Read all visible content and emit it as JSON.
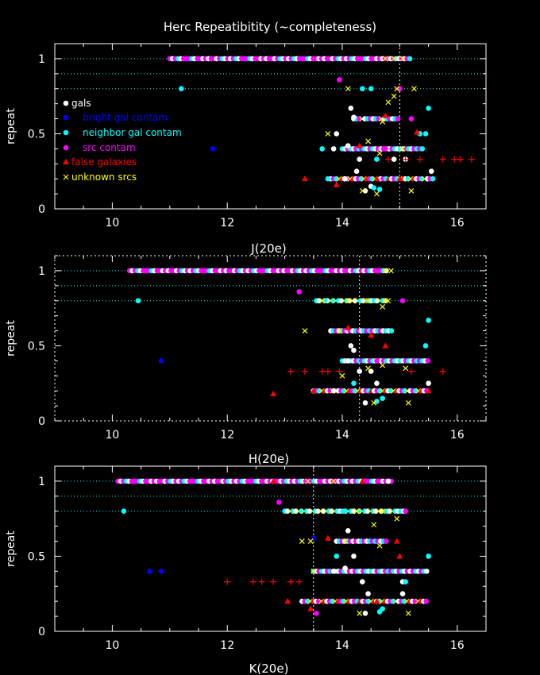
{
  "title": "Herc Repeatibitity (~completeness)",
  "ylabel": "repeat",
  "colors": {
    "background": "#000000",
    "axes": "#ffffff",
    "refline": "#00ffff",
    "gals": "#ffffff",
    "bright": "#0000ff",
    "neighbor": "#00ffff",
    "src": "#ff00ff",
    "false": "#ff0000",
    "unknown": "#ffff00"
  },
  "legend": [
    {
      "key": "gals",
      "label": "gals",
      "marker": "circle",
      "color": "#ffffff"
    },
    {
      "key": "bright",
      "label": "bright gal contam",
      "marker": "circle",
      "color": "#0000ff"
    },
    {
      "key": "neighbor",
      "label": "neighbor gal contam",
      "marker": "circle",
      "color": "#00ffff"
    },
    {
      "key": "src",
      "label": "src contam",
      "marker": "circle",
      "color": "#ff00ff"
    },
    {
      "key": "false",
      "label": "false galaxies",
      "marker": "triangle",
      "color": "#ff0000"
    },
    {
      "key": "unknown",
      "label": "unknown srcs",
      "marker": "x",
      "color": "#ffff00"
    }
  ],
  "chart_data": [
    {
      "type": "scatter",
      "xlabel": "J(20e)",
      "ylabel": "repeat",
      "xlim": [
        9,
        16.5
      ],
      "ylim": [
        0,
        1.1
      ],
      "xticks": [
        10,
        12,
        14,
        16
      ],
      "yticks": [
        0,
        0.5,
        1
      ],
      "ref_lines": [
        1.0,
        0.9,
        0.8
      ],
      "vline": 15.0,
      "dense_bands": [
        {
          "y": 1.0,
          "x_range": [
            11.0,
            15.2
          ],
          "colors": [
            "#ff00ff",
            "#ffffff",
            "#ff00ff",
            "#00ffff",
            "#ffffff",
            "#ff00ff"
          ]
        },
        {
          "y": 0.6,
          "x_range": [
            14.2,
            15.0
          ],
          "colors": [
            "#ffffff",
            "#00ffff",
            "#ff00ff",
            "#ffff00"
          ]
        },
        {
          "y": 0.4,
          "x_range": [
            14.0,
            15.4
          ],
          "colors": [
            "#00ffff",
            "#ffffff",
            "#ff00ff"
          ]
        },
        {
          "y": 0.2,
          "x_range": [
            13.8,
            15.6
          ],
          "colors": [
            "#ffffff",
            "#ff00ff",
            "#00ffff",
            "#ffff00",
            "#ff0000"
          ]
        }
      ],
      "series": [
        {
          "key": "gals",
          "points": [
            [
              14.15,
              0.67
            ],
            [
              14.2,
              0.61
            ],
            [
              13.9,
              0.5
            ],
            [
              14.1,
              0.42
            ],
            [
              14.3,
              0.33
            ],
            [
              14.25,
              0.25
            ],
            [
              14.4,
              0.12
            ],
            [
              14.5,
              0.15
            ],
            [
              15.55,
              0.25
            ],
            [
              14.9,
              0.33
            ],
            [
              15.1,
              0.33
            ],
            [
              13.85,
              0.4
            ],
            [
              14.05,
              0.2
            ]
          ]
        },
        {
          "key": "bright",
          "points": [
            [
              11.75,
              0.4
            ]
          ]
        },
        {
          "key": "neighbor",
          "points": [
            [
              11.2,
              0.8
            ],
            [
              13.65,
              0.4
            ],
            [
              13.75,
              0.2
            ],
            [
              14.35,
              0.8
            ],
            [
              14.5,
              0.8
            ],
            [
              15.5,
              0.67
            ],
            [
              15.35,
              0.5
            ],
            [
              15.45,
              0.5
            ],
            [
              14.6,
              0.33
            ],
            [
              14.65,
              0.13
            ],
            [
              14.55,
              0.14
            ]
          ]
        },
        {
          "key": "src",
          "points": [
            [
              13.95,
              0.86
            ],
            [
              14.75,
              0.4
            ],
            [
              15.0,
              0.8
            ],
            [
              15.2,
              0.6
            ]
          ]
        },
        {
          "key": "false",
          "points": [
            [
              13.35,
              0.2
            ],
            [
              13.9,
              0.16
            ],
            [
              14.8,
              0.33
            ],
            [
              15.1,
              0.33
            ],
            [
              15.35,
              0.33
            ],
            [
              15.75,
              0.33
            ],
            [
              15.95,
              0.33
            ],
            [
              16.05,
              0.33
            ],
            [
              16.25,
              0.33
            ],
            [
              15.3,
              0.51
            ],
            [
              14.75,
              0.62
            ],
            [
              14.3,
              0.42
            ],
            [
              14.6,
              0.2
            ],
            [
              15.0,
              0.2
            ]
          ]
        },
        {
          "key": "unknown",
          "points": [
            [
              13.75,
              0.5
            ],
            [
              14.1,
              0.8
            ],
            [
              14.95,
              0.8
            ],
            [
              15.25,
              0.8
            ],
            [
              14.9,
              0.75
            ],
            [
              14.8,
              0.71
            ],
            [
              14.7,
              0.58
            ],
            [
              14.45,
              0.45
            ],
            [
              14.65,
              0.37
            ],
            [
              15.05,
              0.4
            ],
            [
              15.2,
              0.12
            ],
            [
              14.35,
              0.12
            ],
            [
              14.6,
              0.1
            ],
            [
              14.75,
              1.0
            ],
            [
              14.9,
              1.0
            ],
            [
              15.05,
              1.0
            ]
          ]
        }
      ]
    },
    {
      "type": "scatter",
      "xlabel": "H(20e)",
      "ylabel": "repeat",
      "xlim": [
        9,
        16.5
      ],
      "ylim": [
        0,
        1.1
      ],
      "xticks": [
        10,
        12,
        14,
        16
      ],
      "yticks": [
        0,
        0.5,
        1
      ],
      "ref_lines": [
        1.0,
        0.9,
        0.8
      ],
      "vline": 14.3,
      "dense_bands": [
        {
          "y": 1.0,
          "x_range": [
            10.3,
            14.8
          ],
          "colors": [
            "#ff00ff",
            "#ffffff",
            "#ff00ff",
            "#00ffff",
            "#ffffff",
            "#ff00ff"
          ]
        },
        {
          "y": 0.8,
          "x_range": [
            13.55,
            14.8
          ],
          "colors": [
            "#00ffff",
            "#ffffff",
            "#ffff00"
          ]
        },
        {
          "y": 0.6,
          "x_range": [
            13.8,
            14.9
          ],
          "colors": [
            "#ffffff",
            "#00ffff",
            "#ff00ff"
          ]
        },
        {
          "y": 0.4,
          "x_range": [
            14.0,
            15.5
          ],
          "colors": [
            "#00ffff",
            "#ffffff",
            "#ff00ff"
          ]
        },
        {
          "y": 0.2,
          "x_range": [
            13.5,
            15.5
          ],
          "colors": [
            "#ffffff",
            "#ff00ff",
            "#00ffff",
            "#ffff00",
            "#ff0000"
          ]
        }
      ],
      "series": [
        {
          "key": "gals",
          "points": [
            [
              14.15,
              0.5
            ],
            [
              14.2,
              0.47
            ],
            [
              14.3,
              0.33
            ],
            [
              14.5,
              0.33
            ],
            [
              14.4,
              0.12
            ],
            [
              14.6,
              0.25
            ],
            [
              15.5,
              0.25
            ],
            [
              14.1,
              0.4
            ],
            [
              13.85,
              0.2
            ]
          ]
        },
        {
          "key": "bright",
          "points": [
            [
              10.85,
              0.4
            ]
          ]
        },
        {
          "key": "neighbor",
          "points": [
            [
              10.45,
              0.8
            ],
            [
              13.7,
              0.8
            ],
            [
              15.5,
              0.67
            ],
            [
              15.45,
              0.5
            ],
            [
              14.6,
              0.13
            ],
            [
              14.7,
              0.15
            ],
            [
              14.2,
              0.25
            ]
          ]
        },
        {
          "key": "src",
          "points": [
            [
              13.25,
              0.86
            ],
            [
              14.6,
              0.4
            ],
            [
              15.05,
              0.8
            ]
          ]
        },
        {
          "key": "false",
          "points": [
            [
              12.8,
              0.18
            ],
            [
              13.5,
              0.2
            ],
            [
              14.1,
              0.62
            ],
            [
              14.5,
              0.57
            ],
            [
              14.75,
              0.5
            ],
            [
              13.1,
              0.33
            ],
            [
              13.35,
              0.33
            ],
            [
              13.65,
              0.33
            ],
            [
              13.75,
              0.33
            ],
            [
              13.95,
              0.33
            ],
            [
              15.2,
              0.33
            ],
            [
              15.75,
              0.33
            ],
            [
              15.5,
              0.2
            ]
          ]
        },
        {
          "key": "unknown",
          "points": [
            [
              13.35,
              0.6
            ],
            [
              13.65,
              0.8
            ],
            [
              13.95,
              0.6
            ],
            [
              14.1,
              0.8
            ],
            [
              14.45,
              0.8
            ],
            [
              14.7,
              0.76
            ],
            [
              14.75,
              0.8
            ],
            [
              14.0,
              0.3
            ],
            [
              14.45,
              0.35
            ],
            [
              14.7,
              0.37
            ],
            [
              15.1,
              0.35
            ],
            [
              15.15,
              0.12
            ],
            [
              14.55,
              0.12
            ],
            [
              14.75,
              1.0
            ],
            [
              14.85,
              1.0
            ]
          ]
        }
      ]
    },
    {
      "type": "scatter",
      "xlabel": "K(20e)",
      "ylabel": "repeat",
      "xlim": [
        9,
        16.5
      ],
      "ylim": [
        0,
        1.1
      ],
      "xticks": [
        10,
        12,
        14,
        16
      ],
      "yticks": [
        0,
        0.5,
        1
      ],
      "ref_lines": [
        1.0,
        0.9,
        0.8
      ],
      "vline": 13.5,
      "dense_bands": [
        {
          "y": 1.0,
          "x_range": [
            10.1,
            14.9
          ],
          "colors": [
            "#ff00ff",
            "#ffffff",
            "#ff00ff",
            "#00ffff",
            "#ffffff",
            "#ff00ff"
          ]
        },
        {
          "y": 0.8,
          "x_range": [
            13.0,
            15.1
          ],
          "colors": [
            "#00ffff",
            "#ffffff",
            "#ffff00"
          ]
        },
        {
          "y": 0.6,
          "x_range": [
            13.9,
            14.8
          ],
          "colors": [
            "#ffffff",
            "#00ffff",
            "#ff00ff"
          ]
        },
        {
          "y": 0.4,
          "x_range": [
            13.5,
            15.5
          ],
          "colors": [
            "#00ffff",
            "#ffffff",
            "#ff00ff"
          ]
        },
        {
          "y": 0.2,
          "x_range": [
            13.3,
            15.5
          ],
          "colors": [
            "#ffffff",
            "#ff00ff",
            "#00ffff",
            "#ffff00",
            "#ff0000"
          ]
        }
      ],
      "series": [
        {
          "key": "gals",
          "points": [
            [
              14.1,
              0.67
            ],
            [
              14.2,
              0.5
            ],
            [
              14.05,
              0.42
            ],
            [
              14.35,
              0.33
            ],
            [
              14.45,
              0.25
            ],
            [
              14.4,
              0.12
            ],
            [
              15.05,
              0.33
            ],
            [
              15.05,
              0.25
            ],
            [
              14.8,
              1.0
            ],
            [
              13.85,
              0.4
            ]
          ]
        },
        {
          "key": "bright",
          "points": [
            [
              10.65,
              0.4
            ],
            [
              10.85,
              0.4
            ],
            [
              13.5,
              0.62
            ]
          ]
        },
        {
          "key": "neighbor",
          "points": [
            [
              10.2,
              0.8
            ],
            [
              13.9,
              0.5
            ],
            [
              15.5,
              0.5
            ],
            [
              15.1,
              0.33
            ],
            [
              14.65,
              0.13
            ],
            [
              14.7,
              0.15
            ],
            [
              14.05,
              0.8
            ]
          ]
        },
        {
          "key": "src",
          "points": [
            [
              12.9,
              0.86
            ],
            [
              13.55,
              0.12
            ],
            [
              15.1,
              0.8
            ]
          ]
        },
        {
          "key": "false",
          "points": [
            [
              13.05,
              0.2
            ],
            [
              13.45,
              0.15
            ],
            [
              13.75,
              0.62
            ],
            [
              14.35,
              1.0
            ],
            [
              14.95,
              0.6
            ],
            [
              15.0,
              0.5
            ],
            [
              14.6,
              0.2
            ],
            [
              12.0,
              0.33
            ],
            [
              12.45,
              0.33
            ],
            [
              12.6,
              0.33
            ],
            [
              12.8,
              0.33
            ],
            [
              13.1,
              0.33
            ],
            [
              13.25,
              0.33
            ],
            [
              12.8,
              1.0
            ]
          ]
        },
        {
          "key": "unknown",
          "points": [
            [
              13.3,
              0.6
            ],
            [
              13.45,
              0.6
            ],
            [
              14.05,
              0.6
            ],
            [
              14.55,
              0.71
            ],
            [
              14.95,
              0.75
            ],
            [
              14.7,
              0.8
            ],
            [
              14.25,
              0.8
            ],
            [
              14.65,
              0.57
            ],
            [
              13.5,
              0.4
            ],
            [
              15.15,
              0.12
            ],
            [
              14.3,
              0.12
            ],
            [
              13.4,
              1.0
            ],
            [
              13.85,
              1.0
            ]
          ]
        }
      ]
    }
  ]
}
